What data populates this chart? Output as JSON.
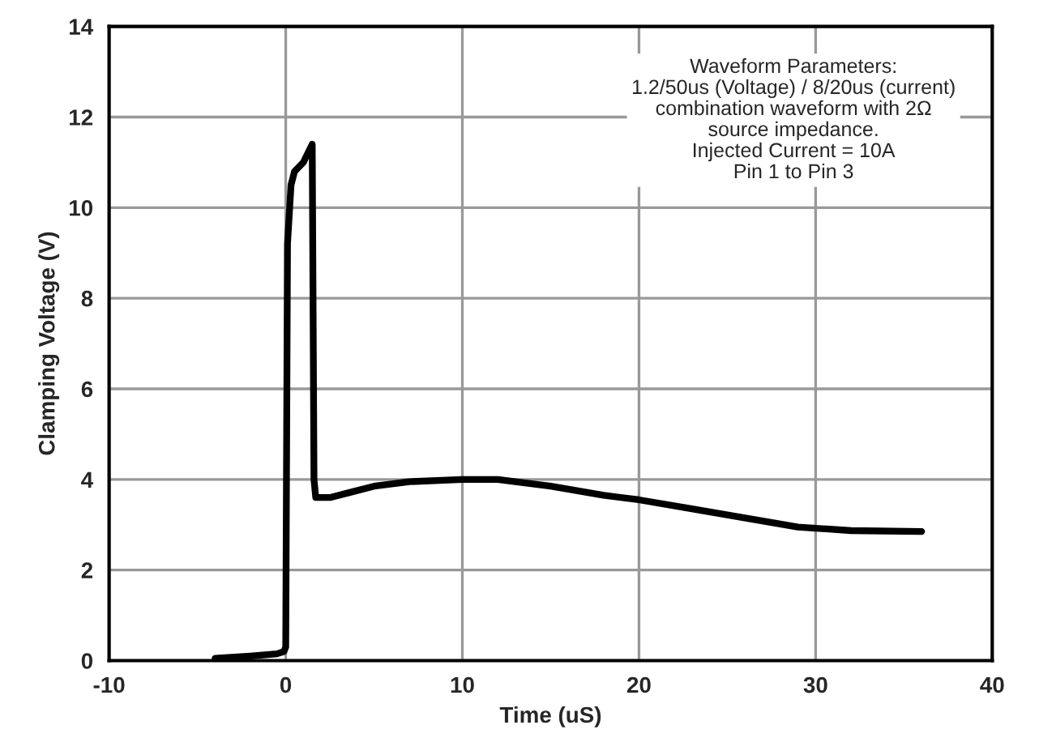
{
  "chart_data": {
    "type": "line",
    "xlabel": "Time (uS)",
    "ylabel": "Clamping Voltage (V)",
    "x": [
      -4,
      -2,
      -0.5,
      -0.1,
      0,
      0.1,
      0.3,
      0.5,
      1.0,
      1.5,
      1.6,
      1.7,
      2.5,
      3.5,
      5,
      7,
      10,
      12,
      15,
      18,
      20,
      23,
      26,
      29,
      32,
      36
    ],
    "series": [
      {
        "color": "#000000",
        "values": [
          0.05,
          0.1,
          0.15,
          0.2,
          0.3,
          9.2,
          10.5,
          10.8,
          11.0,
          11.4,
          4.0,
          3.6,
          3.6,
          3.7,
          3.85,
          3.95,
          4.0,
          4.0,
          3.85,
          3.65,
          3.55,
          3.35,
          3.15,
          2.95,
          2.87,
          2.85
        ]
      }
    ],
    "xlim": [
      -10,
      40
    ],
    "xticks": [
      -10,
      0,
      10,
      20,
      30,
      40
    ],
    "ylim": [
      0,
      14
    ],
    "yticks": [
      0,
      2,
      4,
      6,
      8,
      10,
      12,
      14
    ],
    "grid": true,
    "line_style": "solid",
    "annotations": [
      "Waveform Parameters:\n1.2/50us (Voltage) / 8/20us (current)\ncombination waveform with 2Ω\nsource impedance.\nInjected Current = 10A\nPin 1 to Pin 3"
    ]
  }
}
